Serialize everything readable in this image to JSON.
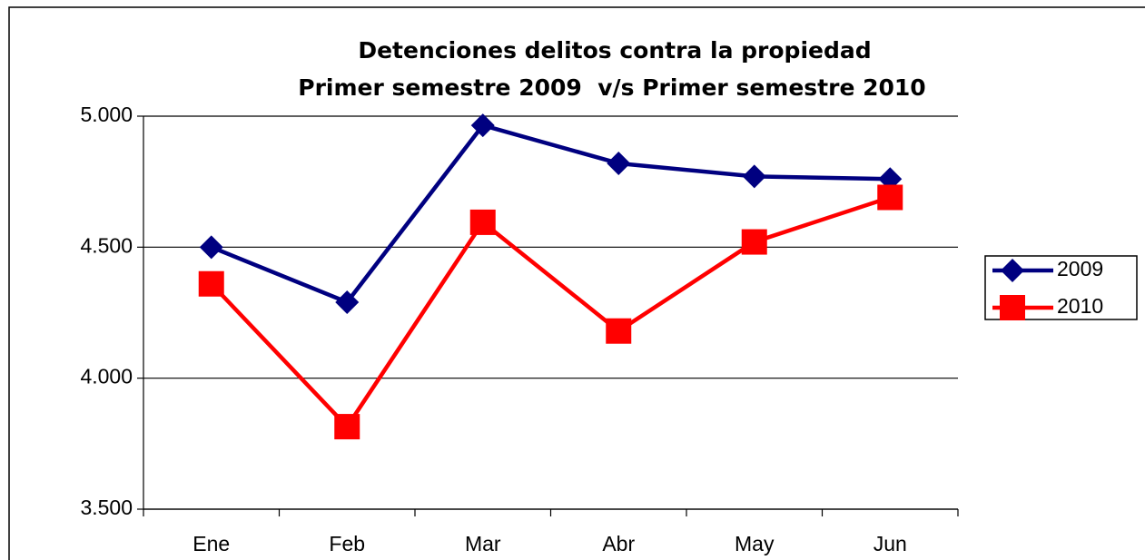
{
  "chart_data": {
    "type": "line",
    "title": "Detenciones delitos contra la propiedad",
    "subtitle": "Primer semestre 2009  v/s Primer semestre 2010",
    "categories": [
      "Ene",
      "Feb",
      "Mar",
      "Abr",
      "May",
      "Jun"
    ],
    "series": [
      {
        "name": "2009",
        "color": "#000080",
        "marker": "diamond",
        "values": [
          4500,
          4290,
          4965,
          4820,
          4770,
          4760
        ]
      },
      {
        "name": "2010",
        "color": "#ff0000",
        "marker": "square",
        "values": [
          4360,
          3815,
          4595,
          4180,
          4520,
          4690
        ]
      }
    ],
    "ylim": [
      3500,
      5000
    ],
    "yticks": [
      {
        "value": 3500,
        "label": "3.500"
      },
      {
        "value": 4000,
        "label": "4.000"
      },
      {
        "value": 4500,
        "label": "4.500"
      },
      {
        "value": 5000,
        "label": "5.000"
      }
    ],
    "grid": true,
    "legend": "right"
  }
}
